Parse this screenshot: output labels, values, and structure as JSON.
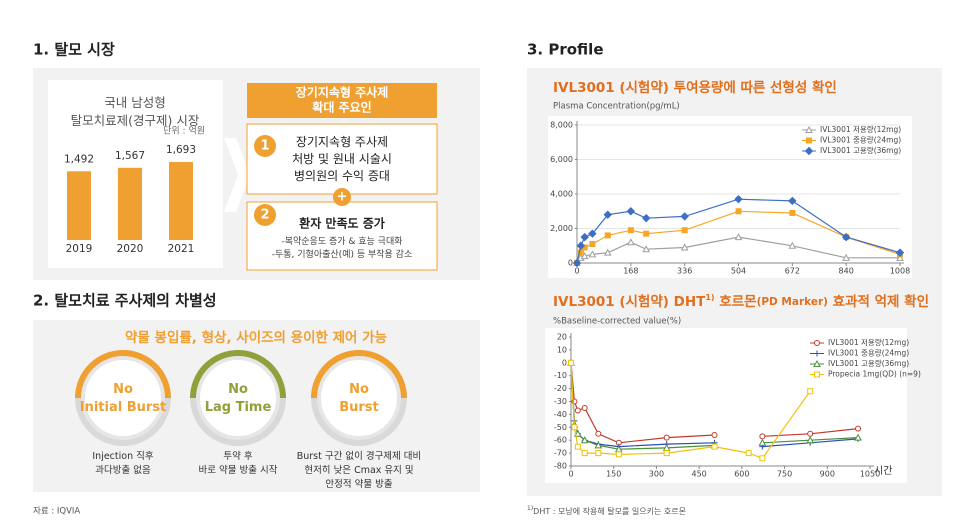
{
  "sections": {
    "market": "1. 탈모 시장",
    "injection": "2. 탈모치료 주사제의 차별성",
    "profile": "3. Profile"
  },
  "factors": {
    "header": "장기지속형 주사제\n확대 주요인",
    "items": [
      {
        "number": "1",
        "text": "장기지속형 주사제\n처방 및 원내 시술시\n병의원의 수익 증대"
      },
      {
        "number": "2",
        "title": "환자 만족도 증가",
        "detail": "-복약순응도 증가 & 효능 극대화\n-두통, 기형아출산(예) 등 부작용 감소"
      }
    ],
    "plus": "+"
  },
  "features": {
    "header": "약물 봉입률, 형상, 사이즈의 용이한 제어 가능",
    "items": [
      {
        "label": "No\nInitial Burst",
        "desc": "Injection 직후\n과다방출 없음",
        "color": "#f0a030"
      },
      {
        "label": "No\nLag Time",
        "desc": "투약 후\n바로 약물 방출 시작",
        "color": "#8ea13a"
      },
      {
        "label": "No\nBurst",
        "desc": "Burst 구간 없이 경구제제 대비\n현저히 낮은 Cmax 유지 및\n안정적 약물 방출",
        "color": "#f0a030"
      }
    ]
  },
  "source": "자료 : IQVIA",
  "footnote": {
    "mark": "1)",
    "text": "DHT : 모낭에 작용해 탈모를 일으키는 호르몬"
  },
  "chart_data": [
    {
      "type": "bar",
      "title": "국내 남성형\n탈모치료제(경구제) 시장",
      "subtitle": "단위 : 억원",
      "categories": [
        "2019",
        "2020",
        "2021"
      ],
      "values": [
        1492,
        1567,
        1693
      ],
      "value_labels": [
        "1,492",
        "1,567",
        "1,693"
      ],
      "color": "#f0a030"
    },
    {
      "type": "line",
      "title": "IVL3001 (시험약) 투여용량에 따른 선형성 확인",
      "y_label": "Plasma Concentration(pg/mL)",
      "x": [
        0,
        12,
        24,
        48,
        96,
        168,
        216,
        336,
        504,
        672,
        840,
        1008
      ],
      "xlim": [
        0,
        1008
      ],
      "xticks": [
        0,
        168,
        336,
        504,
        672,
        840,
        1008
      ],
      "ylim": [
        0,
        8000
      ],
      "yticks": [
        0,
        {
          "value": 2000,
          "label": "2,000"
        },
        {
          "value": 4000,
          "label": "4,000"
        },
        {
          "value": 6000,
          "label": "6,000"
        },
        {
          "value": 8000,
          "label": "8,000"
        }
      ],
      "grid": true,
      "legend": "upper right",
      "series": [
        {
          "name": "IVL3001 저용량(12mg)",
          "color": "#a0a0a0",
          "marker": "triangle",
          "values": [
            0,
            300,
            400,
            500,
            600,
            1200,
            800,
            900,
            1500,
            1000,
            300,
            300
          ]
        },
        {
          "name": "IVL3001 중용량(24mg)",
          "color": "#f5a623",
          "marker": "square",
          "values": [
            0,
            600,
            900,
            1100,
            1600,
            1900,
            1700,
            1900,
            3000,
            2900,
            1500,
            500
          ]
        },
        {
          "name": "IVL3001 고용량(36mg)",
          "color": "#3c6fc4",
          "marker": "diamond",
          "values": [
            0,
            1000,
            1500,
            1700,
            2800,
            3000,
            2600,
            2700,
            3700,
            3600,
            1500,
            600
          ]
        }
      ]
    },
    {
      "type": "line",
      "title_parts": [
        "IVL3001 (시험약) DHT",
        "1)",
        " 호르몬",
        "(PD Marker)",
        " 효과적 억제 확인"
      ],
      "y_label": "%Baseline-corrected value(%)",
      "x_label": "시간",
      "x": [
        0,
        12,
        24,
        48,
        96,
        168,
        336,
        504,
        624,
        672,
        840,
        1008
      ],
      "xlim": [
        0,
        1050
      ],
      "xticks": [
        0,
        150,
        300,
        450,
        600,
        750,
        900,
        1050
      ],
      "ylim": [
        -80,
        20
      ],
      "yticks": [
        20,
        10,
        0,
        -10,
        -20,
        -30,
        -40,
        -50,
        -60,
        -70,
        -80
      ],
      "grid": false,
      "legend": "upper right",
      "series": [
        {
          "name": "IVL3001 저용량(12mg)",
          "color": "#c0392b",
          "marker": "circle",
          "values": [
            0,
            -30,
            -37,
            -35,
            -55,
            -62,
            -58,
            -56,
            null,
            -57,
            -55,
            -51
          ]
        },
        {
          "name": "IVL3001 중용량(24mg)",
          "color": "#2e4fb5",
          "marker": "plus",
          "values": [
            0,
            -45,
            -55,
            -60,
            -63,
            -65,
            -63,
            -62,
            null,
            -65,
            -62,
            -59
          ]
        },
        {
          "name": "IVL3001 고용량(36mg)",
          "color": "#4a8f3a",
          "marker": "triangle",
          "values": [
            0,
            -48,
            -55,
            -60,
            -64,
            -67,
            -66,
            -64,
            null,
            -62,
            -60,
            -58
          ]
        },
        {
          "name": "Propecia 1mg(QD) (n=9)",
          "color": "#f2c200",
          "marker": "square",
          "values": [
            0,
            -50,
            -65,
            -70,
            -70,
            -71,
            -70,
            -65,
            -70,
            -74,
            -22,
            null
          ]
        }
      ]
    }
  ]
}
